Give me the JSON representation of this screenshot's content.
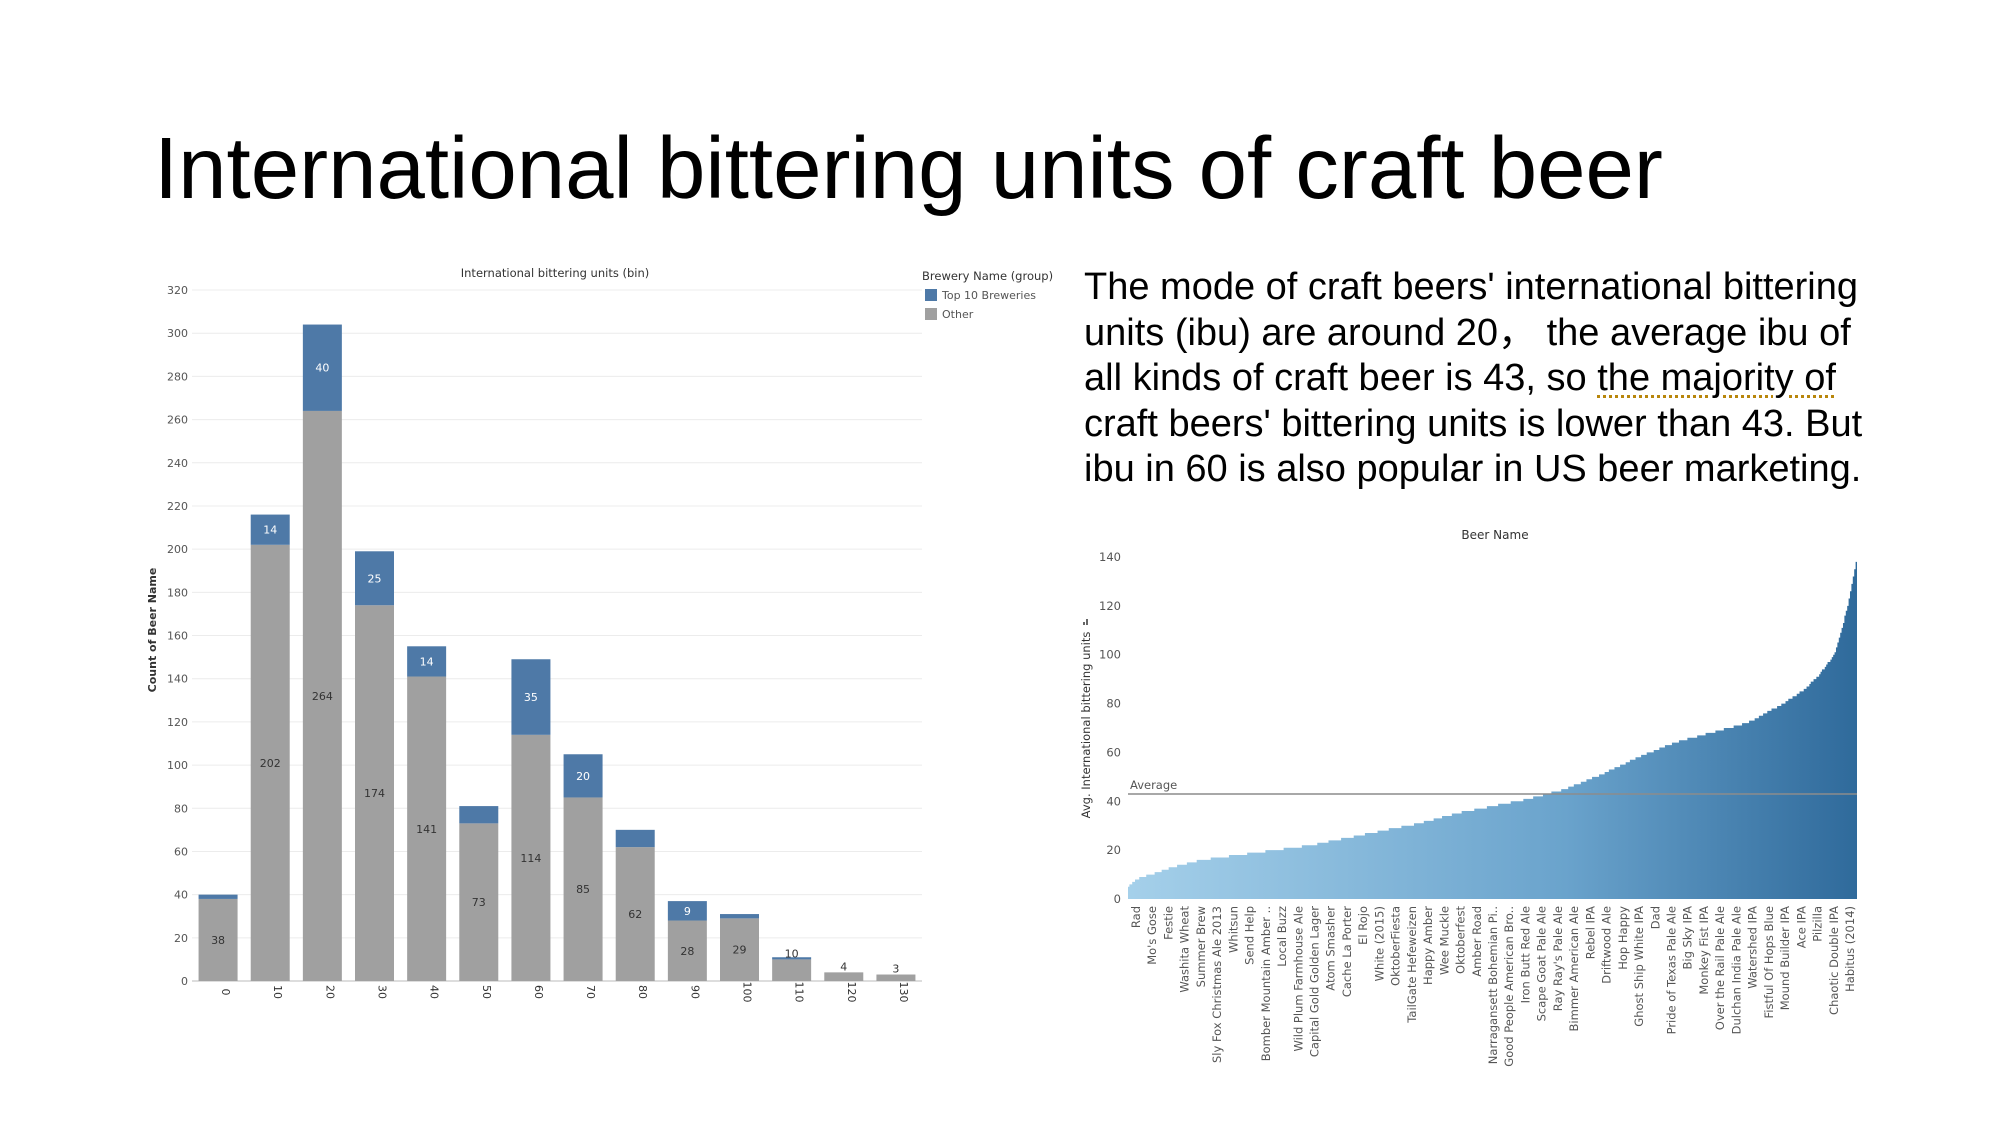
{
  "slide": {
    "title": "International bittering units of craft beer",
    "summary_pre": "The mode of craft beers' international bittering units (ibu) are around 20， the average ibu of all kinds of craft beer is 43, so ",
    "summary_underlined": "the majority of",
    "summary_post": " craft beers' bittering units is lower than 43. But ibu in 60 is also popular in US beer marketing."
  },
  "colors": {
    "top10": "#4e79a7",
    "other": "#a0a0a0",
    "grid": "#e6e6e6",
    "line": "#8c8c8c"
  },
  "chart_data": [
    {
      "type": "bar",
      "stacked": true,
      "title": "International bittering units (bin)",
      "ylabel": "Count of Beer Name",
      "xlabel": "",
      "ylim": [
        0,
        320
      ],
      "yticks": [
        0,
        20,
        40,
        60,
        80,
        100,
        120,
        140,
        160,
        180,
        200,
        220,
        240,
        260,
        280,
        300,
        320
      ],
      "legend_title": "Brewery Name (group)",
      "legend_position": "top-right",
      "grid": true,
      "categories": [
        "0",
        "10",
        "20",
        "30",
        "40",
        "50",
        "60",
        "70",
        "80",
        "90",
        "100",
        "110",
        "120",
        "130"
      ],
      "series": [
        {
          "name": "Other",
          "color": "#a0a0a0",
          "values": [
            38,
            202,
            264,
            174,
            141,
            73,
            114,
            85,
            62,
            28,
            29,
            10,
            4,
            3
          ],
          "labels": [
            "38",
            "202",
            "264",
            "174",
            "141",
            "73",
            "114",
            "85",
            "62",
            "28",
            "29",
            "10",
            "4",
            "3"
          ]
        },
        {
          "name": "Top 10 Breweries",
          "color": "#4e79a7",
          "values": [
            2,
            14,
            40,
            25,
            14,
            8,
            35,
            20,
            8,
            9,
            2,
            1,
            0,
            0
          ],
          "labels": [
            "",
            "14",
            "40",
            "25",
            "14",
            "",
            "35",
            "20",
            "",
            "9",
            "",
            "",
            "",
            ""
          ]
        }
      ]
    },
    {
      "type": "bar",
      "title": "Beer Name",
      "ylabel": "Avg. International bittering units",
      "ylim": [
        0,
        140
      ],
      "yticks": [
        0,
        20,
        40,
        60,
        80,
        100,
        120,
        140
      ],
      "reference_line": {
        "label": "Average",
        "value": 43
      },
      "bar_count": 520,
      "sort": "ascending",
      "color_gradient": [
        "#a5d0ea",
        "#2f6a9b"
      ],
      "tick_labels": [
        "Rad",
        "Mo's Gose",
        "Festie",
        "Washita Wheat",
        "Summer Brew",
        "Sly Fox Christmas Ale 2013",
        "Whitsun",
        "Send Help",
        "Bomber Mountain Amber ..",
        "Local Buzz",
        "Wild Plum Farmhouse Ale",
        "Capital Gold Golden Lager",
        "Atom Smasher",
        "Cache La Porter",
        "El Rojo",
        "White (2015)",
        "OktoberFiesta",
        "TailGate Hefeweizen",
        "Happy Amber",
        "Wee Muckle",
        "Oktoberfest",
        "Amber Road",
        "Narragansett Bohemian Pi..",
        "Good People American Bro..",
        "Iron Butt Red Ale",
        "Scape Goat Pale Ale",
        "Ray Ray's Pale Ale",
        "Bimmer American Ale",
        "Rebel IPA",
        "Driftwood Ale",
        "Hop Happy",
        "Ghost Ship White IPA",
        "Dad",
        "Pride of Texas Pale Ale",
        "Big Sky IPA",
        "Monkey Fist IPA",
        "Over the Rail Pale Ale",
        "Dulchan India Pale Ale",
        "Watershed IPA",
        "Fistful Of Hops Blue",
        "Mound Builder IPA",
        "Ace IPA",
        "Pilzilla",
        "Chaotic Double IPA",
        "Habitus (2014)"
      ],
      "profile_index": [
        0,
        0.01,
        0.03,
        0.06,
        0.1,
        0.15,
        0.2,
        0.25,
        0.3,
        0.35,
        0.4,
        0.45,
        0.5,
        0.55,
        0.6,
        0.65,
        0.7,
        0.75,
        0.8,
        0.85,
        0.9,
        0.93,
        0.95,
        0.97,
        0.98,
        0.99,
        1.0
      ],
      "profile_value": [
        5,
        8,
        10,
        13,
        16,
        18,
        20,
        22,
        25,
        28,
        31,
        35,
        38,
        41,
        45,
        51,
        58,
        64,
        68,
        72,
        80,
        86,
        92,
        100,
        110,
        122,
        138
      ]
    }
  ]
}
